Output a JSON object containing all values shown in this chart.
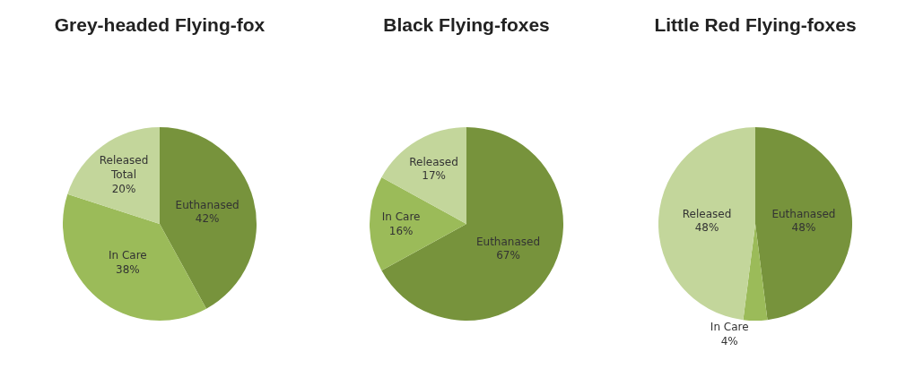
{
  "chart_data": [
    {
      "type": "pie",
      "title": "Grey-headed Flying-fox",
      "categories": [
        "Euthanased",
        "In Care",
        "Released Total"
      ],
      "values": [
        42,
        38,
        20
      ],
      "value_labels": [
        "42%",
        "38%",
        "20%"
      ],
      "colors": [
        "#77933c",
        "#9bbb59",
        "#c3d69b"
      ],
      "legend": false
    },
    {
      "type": "pie",
      "title": "Black Flying-foxes",
      "categories": [
        "Euthanased",
        "In Care",
        "Released"
      ],
      "values": [
        67,
        16,
        17
      ],
      "value_labels": [
        "67%",
        "16%",
        "17%"
      ],
      "colors": [
        "#77933c",
        "#9bbb59",
        "#c3d69b"
      ],
      "legend": false
    },
    {
      "type": "pie",
      "title": "Little Red Flying-foxes",
      "categories": [
        "Euthanased",
        "In Care",
        "Released"
      ],
      "values": [
        48,
        4,
        48
      ],
      "value_labels": [
        "48%",
        "4%",
        "48%"
      ],
      "colors": [
        "#77933c",
        "#9bbb59",
        "#c3d69b"
      ],
      "legend": false
    }
  ]
}
